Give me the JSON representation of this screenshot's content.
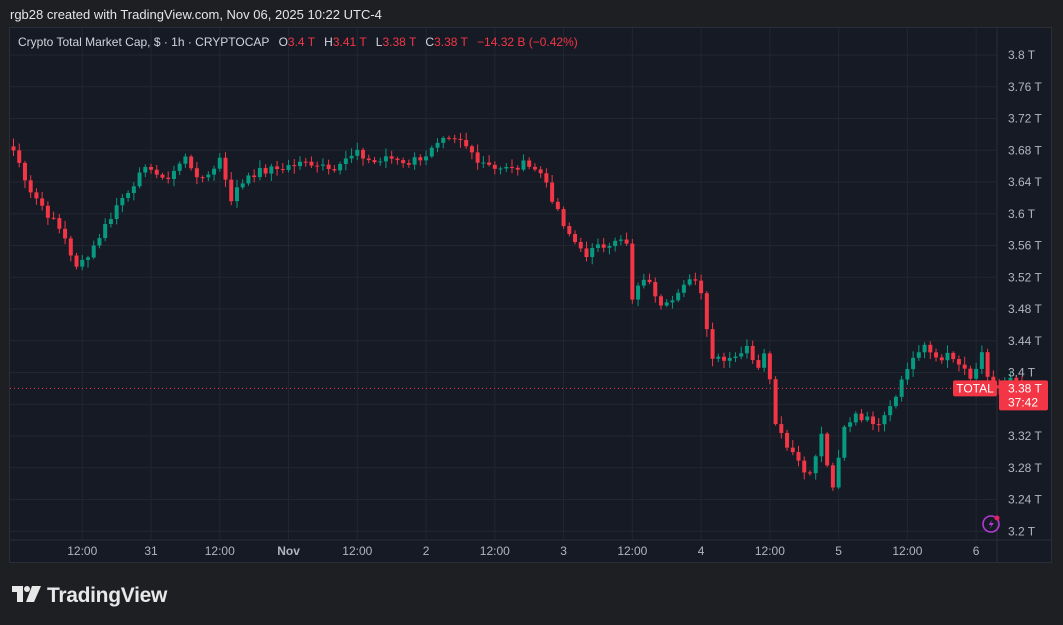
{
  "header": {
    "attribution": "rgb28 created with TradingView.com, Nov 06, 2025 10:22 UTC-4"
  },
  "legend": {
    "symbol": "Crypto Total Market Cap, $ · 1h · CRYPTOCAP",
    "o_label": "O",
    "o_value": "3.4 T",
    "h_label": "H",
    "h_value": "3.41 T",
    "l_label": "L",
    "l_value": "3.38 T",
    "c_label": "C",
    "c_value": "3.38 T",
    "change": "−14.32 B (−0.42%)"
  },
  "price_tag": {
    "symbol": "TOTAL",
    "price": "3.38 T",
    "countdown": "37:42"
  },
  "footer": {
    "brand": "TradingView"
  },
  "colors": {
    "up": "#089981",
    "down": "#f23645",
    "background": "#161a25",
    "grid": "#222631"
  },
  "chart_data": {
    "type": "candlestick",
    "y_unit": "T USD",
    "ylim": [
      3.18,
      3.82
    ],
    "y_ticks": [
      "3.8 T",
      "3.76 T",
      "3.72 T",
      "3.68 T",
      "3.64 T",
      "3.6 T",
      "3.56 T",
      "3.52 T",
      "3.48 T",
      "3.44 T",
      "3.4 T",
      "3.36 T",
      "3.32 T",
      "3.28 T",
      "3.24 T",
      "3.2 T"
    ],
    "y_tick_values": [
      3.8,
      3.76,
      3.72,
      3.68,
      3.64,
      3.6,
      3.56,
      3.52,
      3.48,
      3.44,
      3.4,
      3.36,
      3.32,
      3.28,
      3.24,
      3.2
    ],
    "x_ticks": [
      "12:00",
      "31",
      "12:00",
      "Nov",
      "12:00",
      "2",
      "12:00",
      "3",
      "12:00",
      "4",
      "12:00",
      "5",
      "12:00",
      "6"
    ],
    "x_tick_hour_index": [
      12,
      24,
      36,
      48,
      60,
      72,
      84,
      96,
      108,
      120,
      132,
      144,
      156,
      168
    ],
    "first_candle_hour_index": 0,
    "current_price": 3.38,
    "close_path": [
      [
        0,
        3.68
      ],
      [
        3,
        3.63
      ],
      [
        6,
        3.6
      ],
      [
        9,
        3.57
      ],
      [
        11,
        3.53
      ],
      [
        14,
        3.56
      ],
      [
        18,
        3.61
      ],
      [
        21,
        3.64
      ],
      [
        24,
        3.66
      ],
      [
        26,
        3.64
      ],
      [
        30,
        3.67
      ],
      [
        33,
        3.64
      ],
      [
        36,
        3.67
      ],
      [
        38,
        3.62
      ],
      [
        41,
        3.65
      ],
      [
        45,
        3.655
      ],
      [
        48,
        3.66
      ],
      [
        52,
        3.665
      ],
      [
        56,
        3.66
      ],
      [
        60,
        3.675
      ],
      [
        63,
        3.665
      ],
      [
        66,
        3.67
      ],
      [
        69,
        3.665
      ],
      [
        72,
        3.675
      ],
      [
        75,
        3.69
      ],
      [
        78,
        3.69
      ],
      [
        81,
        3.67
      ],
      [
        84,
        3.66
      ],
      [
        87,
        3.655
      ],
      [
        90,
        3.665
      ],
      [
        92,
        3.65
      ],
      [
        93,
        3.64
      ],
      [
        95,
        3.6
      ],
      [
        97,
        3.57
      ],
      [
        100,
        3.55
      ],
      [
        103,
        3.56
      ],
      [
        105,
        3.57
      ],
      [
        107,
        3.56
      ],
      [
        108,
        3.49
      ],
      [
        110,
        3.52
      ],
      [
        113,
        3.49
      ],
      [
        116,
        3.5
      ],
      [
        119,
        3.52
      ],
      [
        120,
        3.5
      ],
      [
        122,
        3.42
      ],
      [
        125,
        3.42
      ],
      [
        128,
        3.43
      ],
      [
        130,
        3.41
      ],
      [
        131,
        3.43
      ],
      [
        132,
        3.39
      ],
      [
        133,
        3.34
      ],
      [
        135,
        3.31
      ],
      [
        137,
        3.29
      ],
      [
        139,
        3.27
      ],
      [
        141,
        3.32
      ],
      [
        143,
        3.25
      ],
      [
        145,
        3.33
      ],
      [
        147,
        3.35
      ],
      [
        149,
        3.34
      ],
      [
        151,
        3.34
      ],
      [
        153,
        3.36
      ],
      [
        155,
        3.39
      ],
      [
        157,
        3.42
      ],
      [
        159,
        3.43
      ],
      [
        161,
        3.42
      ],
      [
        163,
        3.42
      ],
      [
        165,
        3.41
      ],
      [
        167,
        3.39
      ],
      [
        169,
        3.42
      ],
      [
        170,
        3.39
      ],
      [
        172,
        3.38
      ],
      [
        174,
        3.39
      ],
      [
        176,
        3.38
      ]
    ]
  }
}
